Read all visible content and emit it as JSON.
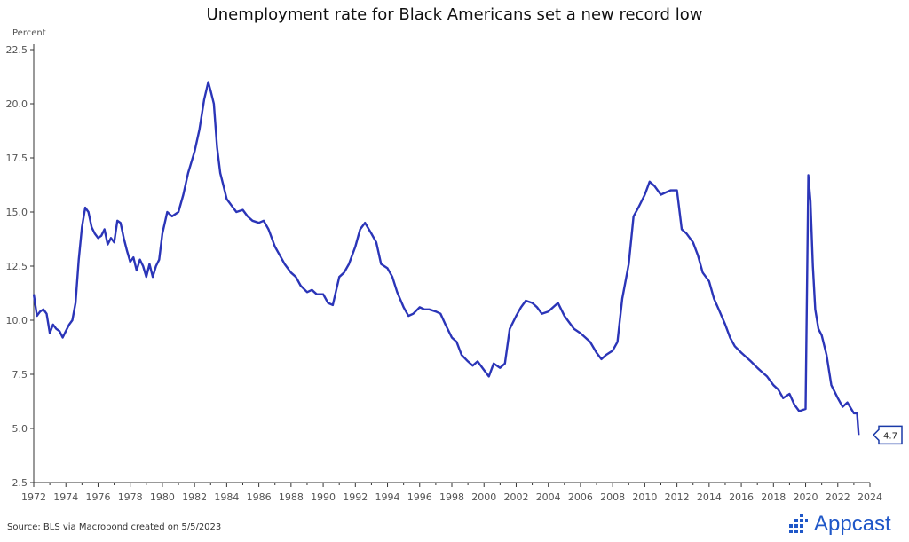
{
  "title": "Unemployment rate for Black Americans set a new record low",
  "source": "Source: BLS via Macrobond created on 5/5/2023",
  "logo": {
    "text": "Appcast",
    "color": "#1f57c8"
  },
  "colors": {
    "line": "#2b35b8",
    "axis": "#333333",
    "callout": "#1a3aa8"
  },
  "chart_data": {
    "type": "line",
    "title": "Unemployment rate for Black Americans set a new record low",
    "xlabel": "",
    "ylabel": "Percent",
    "xlim": [
      1972,
      2024
    ],
    "ylim": [
      2.5,
      22.5
    ],
    "xticks": [
      "1972",
      "1974",
      "1976",
      "1978",
      "1980",
      "1982",
      "1984",
      "1986",
      "1988",
      "1990",
      "1992",
      "1994",
      "1996",
      "1998",
      "2000",
      "2002",
      "2004",
      "2006",
      "2008",
      "2010",
      "2012",
      "2014",
      "2016",
      "2018",
      "2020",
      "2022",
      "2024"
    ],
    "yticks": [
      "2.5",
      "5.0",
      "7.5",
      "10.0",
      "12.5",
      "15.0",
      "17.5",
      "20.0",
      "22.5"
    ],
    "grid": false,
    "last_value_label": "4.7",
    "series": [
      {
        "x": [
          1972.0,
          1972.2,
          1972.4,
          1972.6,
          1972.8,
          1973.0,
          1973.2,
          1973.4,
          1973.6,
          1973.8,
          1974.0,
          1974.2,
          1974.4,
          1974.6,
          1974.8,
          1975.0,
          1975.2,
          1975.4,
          1975.6,
          1975.8,
          1976.0,
          1976.2,
          1976.4,
          1976.6,
          1976.8,
          1977.0,
          1977.2,
          1977.4,
          1977.6,
          1977.8,
          1978.0,
          1978.2,
          1978.4,
          1978.6,
          1978.8,
          1979.0,
          1979.2,
          1979.4,
          1979.6,
          1979.8,
          1980.0,
          1980.3,
          1980.6,
          1981.0,
          1981.3,
          1981.6,
          1982.0,
          1982.3,
          1982.6,
          1982.85,
          1983.0,
          1983.2,
          1983.4,
          1983.6,
          1983.8,
          1984.0,
          1984.3,
          1984.6,
          1985.0,
          1985.3,
          1985.6,
          1986.0,
          1986.3,
          1986.6,
          1987.0,
          1987.3,
          1987.6,
          1988.0,
          1988.3,
          1988.6,
          1989.0,
          1989.3,
          1989.6,
          1990.0,
          1990.3,
          1990.6,
          1991.0,
          1991.3,
          1991.6,
          1992.0,
          1992.3,
          1992.6,
          1993.0,
          1993.3,
          1993.6,
          1994.0,
          1994.3,
          1994.6,
          1995.0,
          1995.3,
          1995.6,
          1996.0,
          1996.3,
          1996.6,
          1997.0,
          1997.3,
          1997.6,
          1998.0,
          1998.3,
          1998.6,
          1999.0,
          1999.3,
          1999.6,
          2000.0,
          2000.3,
          2000.6,
          2001.0,
          2001.3,
          2001.6,
          2002.0,
          2002.3,
          2002.6,
          2003.0,
          2003.3,
          2003.6,
          2004.0,
          2004.3,
          2004.6,
          2005.0,
          2005.3,
          2005.6,
          2006.0,
          2006.3,
          2006.6,
          2007.0,
          2007.3,
          2007.6,
          2008.0,
          2008.3,
          2008.6,
          2009.0,
          2009.3,
          2009.6,
          2010.0,
          2010.3,
          2010.6,
          2011.0,
          2011.3,
          2011.6,
          2012.0,
          2012.3,
          2012.6,
          2013.0,
          2013.3,
          2013.6,
          2014.0,
          2014.3,
          2014.6,
          2015.0,
          2015.3,
          2015.6,
          2016.0,
          2016.3,
          2016.6,
          2017.0,
          2017.3,
          2017.6,
          2018.0,
          2018.3,
          2018.6,
          2019.0,
          2019.3,
          2019.6,
          2020.0,
          2020.17,
          2020.3,
          2020.45,
          2020.6,
          2020.8,
          2021.0,
          2021.3,
          2021.6,
          2022.0,
          2022.3,
          2022.6,
          2023.0,
          2023.2,
          2023.3
        ],
        "y": [
          11.2,
          10.2,
          10.4,
          10.5,
          10.3,
          9.4,
          9.8,
          9.6,
          9.5,
          9.2,
          9.5,
          9.8,
          10.0,
          10.8,
          12.8,
          14.3,
          15.2,
          15.0,
          14.3,
          14.0,
          13.8,
          13.9,
          14.2,
          13.5,
          13.8,
          13.6,
          14.6,
          14.5,
          13.8,
          13.2,
          12.7,
          12.9,
          12.3,
          12.8,
          12.5,
          12.0,
          12.6,
          12.0,
          12.5,
          12.8,
          14.0,
          15.0,
          14.8,
          15.0,
          15.8,
          16.8,
          17.8,
          18.8,
          20.2,
          21.0,
          20.6,
          20.0,
          18.0,
          16.8,
          16.2,
          15.6,
          15.3,
          15.0,
          15.1,
          14.8,
          14.6,
          14.5,
          14.6,
          14.2,
          13.4,
          13.0,
          12.6,
          12.2,
          12.0,
          11.6,
          11.3,
          11.4,
          11.2,
          11.2,
          10.8,
          10.7,
          12.0,
          12.2,
          12.6,
          13.4,
          14.2,
          14.5,
          14.0,
          13.6,
          12.6,
          12.4,
          12.0,
          11.3,
          10.6,
          10.2,
          10.3,
          10.6,
          10.5,
          10.5,
          10.4,
          10.3,
          9.8,
          9.2,
          9.0,
          8.4,
          8.1,
          7.9,
          8.1,
          7.7,
          7.4,
          8.0,
          7.8,
          8.0,
          9.6,
          10.2,
          10.6,
          10.9,
          10.8,
          10.6,
          10.3,
          10.4,
          10.6,
          10.8,
          10.2,
          9.9,
          9.6,
          9.4,
          9.2,
          9.0,
          8.5,
          8.2,
          8.4,
          8.6,
          9.0,
          11.0,
          12.6,
          14.8,
          15.2,
          15.8,
          16.4,
          16.2,
          15.8,
          15.9,
          16.0,
          16.0,
          14.2,
          14.0,
          13.6,
          13.0,
          12.2,
          11.8,
          11.0,
          10.5,
          9.8,
          9.2,
          8.8,
          8.5,
          8.3,
          8.1,
          7.8,
          7.6,
          7.4,
          7.0,
          6.8,
          6.4,
          6.6,
          6.1,
          5.8,
          5.9,
          16.7,
          15.5,
          12.5,
          10.5,
          9.6,
          9.3,
          8.4,
          7.0,
          6.4,
          6.0,
          6.2,
          5.7,
          5.7,
          4.7
        ]
      }
    ]
  }
}
